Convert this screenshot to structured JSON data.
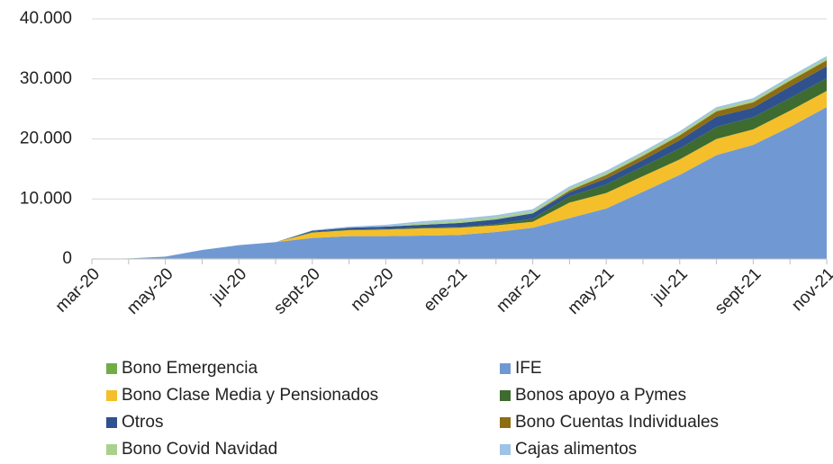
{
  "chart_data": {
    "type": "stacked_area",
    "categories": [
      "mar-20",
      null,
      "may-20",
      null,
      "jul-20",
      null,
      "sept-20",
      null,
      "nov-20",
      null,
      "ene-21",
      null,
      "mar-21",
      null,
      "may-21",
      null,
      "jul-21",
      null,
      "sept-21",
      null,
      "nov-21"
    ],
    "series": [
      {
        "name": "Bono Emergencia",
        "color": "#70ad47",
        "values": [
          0,
          100,
          100,
          100,
          100,
          100,
          100,
          0,
          0,
          0,
          0,
          0,
          0,
          0,
          0,
          0,
          0,
          0,
          0,
          0,
          0
        ]
      },
      {
        "name": "IFE",
        "color": "#7099d3",
        "values": [
          0,
          0,
          300,
          1400,
          2200,
          2700,
          3400,
          3800,
          3800,
          3900,
          4000,
          4500,
          5200,
          6800,
          8400,
          11200,
          14000,
          17300,
          19000,
          22000,
          25300
        ]
      },
      {
        "name": "Bono Clase Media y Pensionados",
        "color": "#f4bf2a",
        "values": [
          0,
          0,
          0,
          0,
          0,
          0,
          900,
          1000,
          1100,
          1200,
          1200,
          1100,
          1000,
          2600,
          2600,
          2600,
          2600,
          2700,
          2600,
          2700,
          2700
        ]
      },
      {
        "name": "Bonos apoyo a Pymes",
        "color": "#3e6b2f",
        "values": [
          0,
          0,
          0,
          0,
          0,
          0,
          100,
          100,
          100,
          100,
          100,
          200,
          500,
          1000,
          1400,
          1600,
          1800,
          2000,
          2000,
          2100,
          2100
        ]
      },
      {
        "name": "Otros",
        "color": "#2f528f",
        "values": [
          0,
          0,
          0,
          0,
          0,
          0,
          200,
          300,
          400,
          500,
          700,
          800,
          900,
          700,
          1000,
          1100,
          1400,
          1700,
          1600,
          1900,
          2000
        ]
      },
      {
        "name": "Bono Cuentas Individuales",
        "color": "#8c6d14",
        "values": [
          0,
          0,
          0,
          0,
          0,
          0,
          0,
          0,
          0,
          0,
          0,
          0,
          0,
          300,
          600,
          700,
          800,
          900,
          900,
          1000,
          1000
        ]
      },
      {
        "name": "Bono Covid Navidad",
        "color": "#a9d18e",
        "values": [
          0,
          0,
          0,
          0,
          0,
          0,
          0,
          0,
          0,
          300,
          400,
          400,
          400,
          400,
          400,
          400,
          400,
          400,
          400,
          400,
          400
        ]
      },
      {
        "name": "Cajas alimentos",
        "color": "#9dc3e6",
        "values": [
          0,
          0,
          0,
          0,
          0,
          0,
          100,
          200,
          300,
          300,
          300,
          300,
          300,
          300,
          300,
          300,
          300,
          300,
          300,
          300,
          300
        ]
      }
    ],
    "ylim": [
      0,
      40000
    ],
    "yticks": [
      0,
      {
        "value": 10000,
        "label": "10.000"
      },
      {
        "value": 20000,
        "label": "20.000"
      },
      {
        "value": 30000,
        "label": "30.000"
      },
      {
        "value": 40000,
        "label": "40.000"
      }
    ],
    "grid": true,
    "legend": "bottom"
  }
}
